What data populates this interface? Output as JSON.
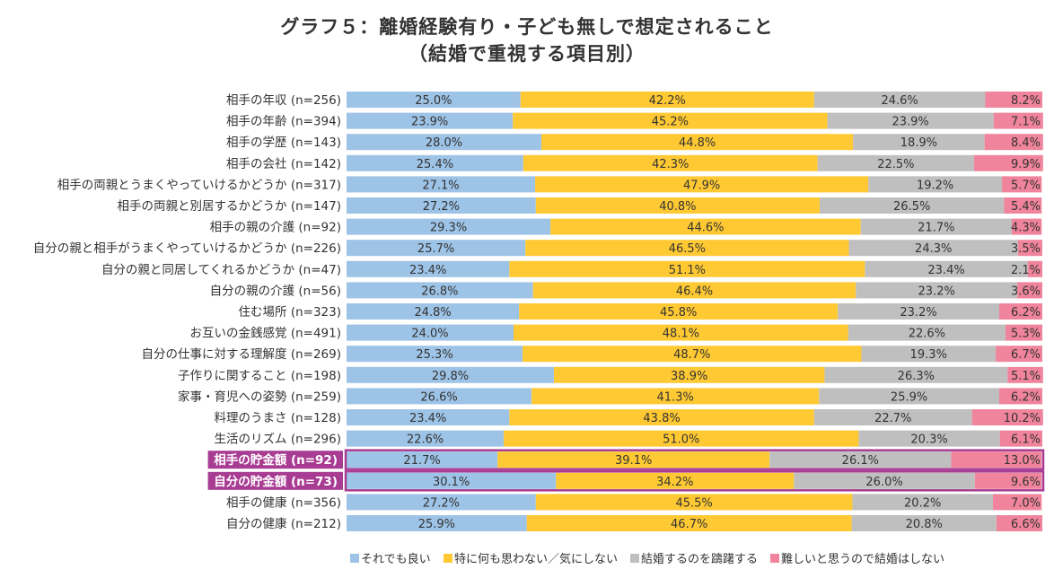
{
  "title": "グラフ５：離婚経験有り・子ども無しで想定されること",
  "subtitle": "（結婚で重視する項目別）",
  "colors": {
    "s1": "#9dc3e6",
    "s2": "#ffc933",
    "s3": "#bfbfbf",
    "s4": "#f0849c",
    "highlight": "#a83c93"
  },
  "chart_data": {
    "type": "bar",
    "orientation": "horizontal",
    "stacked": true,
    "percent": true,
    "xlim": [
      0,
      100
    ],
    "legend_position": "bottom-right",
    "categories": [
      "相手の年収 (n=256)",
      "相手の年齢 (n=394)",
      "相手の学歴 (n=143)",
      "相手の会社 (n=142)",
      "相手の両親とうまくやっていけるかどうか (n=317)",
      "相手の両親と別居するかどうか (n=147)",
      "相手の親の介護 (n=92)",
      "自分の親と相手がうまくやっていけるかどうか (n=226)",
      "自分の親と同居してくれるかどうか (n=47)",
      "自分の親の介護 (n=56)",
      "住む場所 (n=323)",
      "お互いの金銭感覚 (n=491)",
      "自分の仕事に対する理解度 (n=269)",
      "子作りに関すること (n=198)",
      "家事・育児への姿勢 (n=259)",
      "料理のうまさ (n=128)",
      "生活のリズム (n=296)",
      "相手の貯金額 (n=92)",
      "自分の貯金額 (n=73)",
      "相手の健康 (n=356)",
      "自分の健康 (n=212)"
    ],
    "highlighted": [
      17,
      18
    ],
    "series": [
      {
        "name": "それでも良い",
        "values": [
          25.0,
          23.9,
          28.0,
          25.4,
          27.1,
          27.2,
          29.3,
          25.7,
          23.4,
          26.8,
          24.8,
          24.0,
          25.3,
          29.8,
          26.6,
          23.4,
          22.6,
          21.7,
          30.1,
          27.2,
          25.9
        ]
      },
      {
        "name": "特に何も思わない／気にしない",
        "values": [
          42.2,
          45.2,
          44.8,
          42.3,
          47.9,
          40.8,
          44.6,
          46.5,
          51.1,
          46.4,
          45.8,
          48.1,
          48.7,
          38.9,
          41.3,
          43.8,
          51.0,
          39.1,
          34.2,
          45.5,
          46.7
        ]
      },
      {
        "name": "結婚するのを躊躇する",
        "values": [
          24.6,
          23.9,
          18.9,
          22.5,
          19.2,
          26.5,
          21.7,
          24.3,
          23.4,
          23.2,
          23.2,
          22.6,
          19.3,
          26.3,
          25.9,
          22.7,
          20.3,
          26.1,
          26.0,
          20.2,
          20.8
        ]
      },
      {
        "name": "難しいと思うので結婚はしない",
        "values": [
          8.2,
          7.1,
          8.4,
          9.9,
          5.7,
          5.4,
          4.3,
          3.5,
          2.1,
          3.6,
          6.2,
          5.3,
          6.7,
          5.1,
          6.2,
          10.2,
          6.1,
          13.0,
          9.6,
          7.0,
          6.6
        ]
      }
    ]
  }
}
